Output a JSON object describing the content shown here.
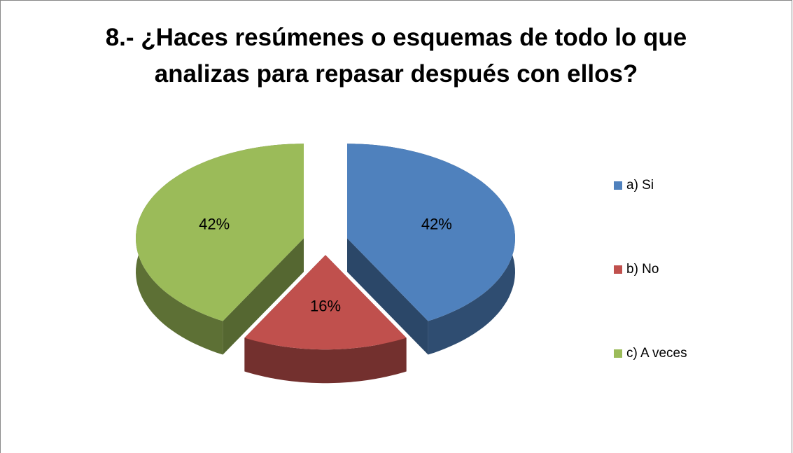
{
  "chart_data": {
    "type": "pie",
    "title": "8.- ¿Haces resúmenes o esquemas de todo lo que analizas para repasar después con ellos?",
    "categories": [
      "a) Si",
      "b) No",
      "c) A veces"
    ],
    "values": [
      42,
      16,
      42
    ],
    "value_labels": [
      "42%",
      "16%",
      "42%"
    ],
    "colors": [
      "#4f81bd",
      "#c0504d",
      "#9bbb59"
    ],
    "legend": "right"
  }
}
